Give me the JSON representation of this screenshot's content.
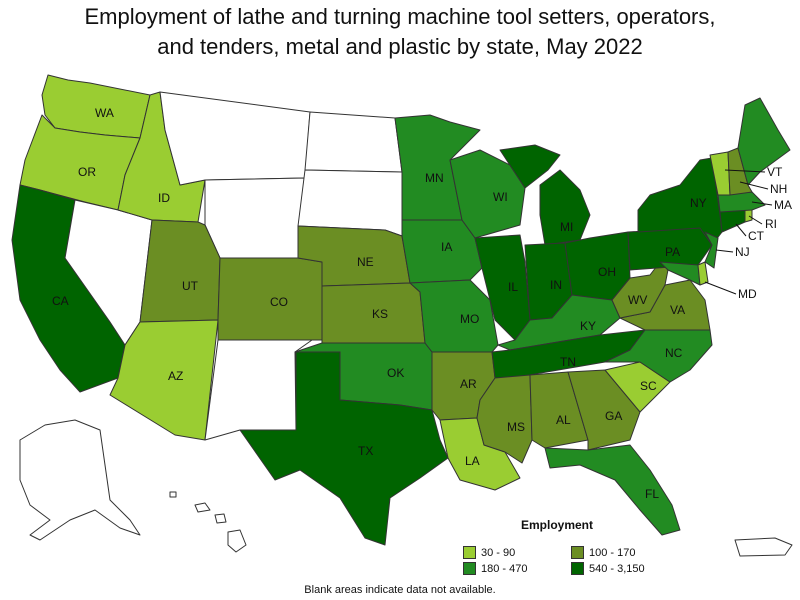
{
  "title_line1": "Employment of lathe and turning machine tool setters, operators,",
  "title_line2": "and tenders, metal and plastic by state, May 2022",
  "legend": {
    "title": "Employment",
    "items": [
      {
        "label": "30 - 90",
        "color": "#9acd32"
      },
      {
        "label": "100 - 170",
        "color": "#6b8e23"
      },
      {
        "label": "180 - 470",
        "color": "#228b22"
      },
      {
        "label": "540 - 3,150",
        "color": "#006400"
      }
    ]
  },
  "note": "Blank areas indicate data not available.",
  "states": {
    "WA": "30 - 90",
    "OR": "30 - 90",
    "ID": "30 - 90",
    "AZ": "30 - 90",
    "LA": "30 - 90",
    "SC": "30 - 90",
    "VT": "30 - 90",
    "RI": "30 - 90",
    "DE": "30 - 90",
    "UT": "100 - 170",
    "CO": "100 - 170",
    "NE": "100 - 170",
    "KS": "100 - 170",
    "AR": "100 - 170",
    "MS": "100 - 170",
    "AL": "100 - 170",
    "GA": "100 - 170",
    "WV": "100 - 170",
    "VA": "100 - 170",
    "NH": "100 - 170",
    "MN": "180 - 470",
    "WI": "180 - 470",
    "IA": "180 - 470",
    "MO": "180 - 470",
    "OK": "180 - 470",
    "KY": "180 - 470",
    "NC": "180 - 470",
    "FL": "180 - 470",
    "NJ": "180 - 470",
    "MA": "180 - 470",
    "MD": "180 - 470",
    "ME": "180 - 470",
    "CA": "540 - 3,150",
    "TX": "540 - 3,150",
    "IL": "540 - 3,150",
    "IN": "540 - 3,150",
    "MI": "540 - 3,150",
    "OH": "540 - 3,150",
    "PA": "540 - 3,150",
    "NY": "540 - 3,150",
    "TN": "540 - 3,150",
    "CT": "540 - 3,150"
  }
}
